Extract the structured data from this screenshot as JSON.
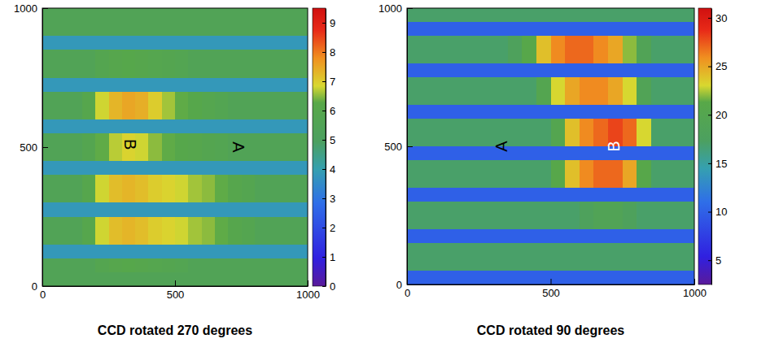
{
  "chart_data": [
    {
      "type": "heatmap",
      "title": "CCD rotated 270 degrees",
      "xlim": [
        0,
        1000
      ],
      "xticks": [
        0,
        500,
        1000
      ],
      "ylim": [
        0,
        1000
      ],
      "yticks": [
        0,
        500,
        1000
      ],
      "zlim": [
        0,
        9.5
      ],
      "zticks": [
        0,
        1,
        2,
        3,
        4,
        5,
        6,
        7,
        8,
        9
      ],
      "x": [
        25,
        75,
        125,
        175,
        225,
        275,
        325,
        375,
        425,
        475,
        525,
        575,
        625,
        675,
        725,
        775,
        825,
        875,
        925,
        975
      ],
      "y": [
        975,
        925,
        875,
        825,
        775,
        725,
        675,
        625,
        575,
        525,
        475,
        425,
        375,
        325,
        275,
        225,
        175,
        125,
        75,
        25
      ],
      "z": [
        [
          5.5,
          5.5,
          5.5,
          5.5,
          5.5,
          5.5,
          5.5,
          5.5,
          5.5,
          5.5,
          5.5,
          5.5,
          5.5,
          5.5,
          5.5,
          5.5,
          5.5,
          5.5,
          5.5,
          5.5
        ],
        [
          5.5,
          5.5,
          5.5,
          5.5,
          5.5,
          5.5,
          5.5,
          5.5,
          5.5,
          5.5,
          5.5,
          5.5,
          5.5,
          5.5,
          5.5,
          5.5,
          5.5,
          5.5,
          5.5,
          5.5
        ],
        [
          3.8,
          3.8,
          3.8,
          3.8,
          3.8,
          3.8,
          3.8,
          3.8,
          3.8,
          3.8,
          3.8,
          3.8,
          3.8,
          3.8,
          3.8,
          3.8,
          3.8,
          3.8,
          3.8,
          3.8
        ],
        [
          5.5,
          5.5,
          5.5,
          5.5,
          5.8,
          6.0,
          6.1,
          6.0,
          5.9,
          5.8,
          5.7,
          5.5,
          5.5,
          5.5,
          5.5,
          5.5,
          5.5,
          5.5,
          5.5,
          5.5
        ],
        [
          5.5,
          5.5,
          5.5,
          5.5,
          5.8,
          6.0,
          6.1,
          6.0,
          5.9,
          5.8,
          5.7,
          5.5,
          5.5,
          5.5,
          5.5,
          5.5,
          5.5,
          5.5,
          5.5,
          5.5
        ],
        [
          3.8,
          3.8,
          3.8,
          3.8,
          3.8,
          3.8,
          3.8,
          3.8,
          3.8,
          3.8,
          3.8,
          3.8,
          3.8,
          3.8,
          3.8,
          3.8,
          3.8,
          3.8,
          3.8,
          3.8
        ],
        [
          5.5,
          5.5,
          5.5,
          6.0,
          6.8,
          7.3,
          7.5,
          7.4,
          7.0,
          6.6,
          6.3,
          6.1,
          5.9,
          5.7,
          5.5,
          5.5,
          5.5,
          5.5,
          5.5,
          5.5
        ],
        [
          5.5,
          5.5,
          5.5,
          6.0,
          6.8,
          7.3,
          7.5,
          7.4,
          7.0,
          6.6,
          6.3,
          6.1,
          5.9,
          5.7,
          5.5,
          5.5,
          5.5,
          5.5,
          5.5,
          5.5
        ],
        [
          3.8,
          3.8,
          3.8,
          3.8,
          3.8,
          3.8,
          3.8,
          3.8,
          3.8,
          3.8,
          3.8,
          3.8,
          3.8,
          3.8,
          3.8,
          3.8,
          3.8,
          3.8,
          3.8,
          3.8
        ],
        [
          5.5,
          5.5,
          5.5,
          5.8,
          6.3,
          6.7,
          6.9,
          6.8,
          6.5,
          6.3,
          6.1,
          6.0,
          5.8,
          5.7,
          5.5,
          5.5,
          5.5,
          5.5,
          5.5,
          5.5
        ],
        [
          5.5,
          5.5,
          5.5,
          5.8,
          6.3,
          6.7,
          6.9,
          6.8,
          6.5,
          6.3,
          6.1,
          6.0,
          5.8,
          5.7,
          5.5,
          5.5,
          5.5,
          5.5,
          5.5,
          5.5
        ],
        [
          3.8,
          3.8,
          3.8,
          3.8,
          3.8,
          3.8,
          3.8,
          3.8,
          3.8,
          3.8,
          3.8,
          3.8,
          3.8,
          3.8,
          3.8,
          3.8,
          3.8,
          3.8,
          3.8,
          3.8
        ],
        [
          5.5,
          5.5,
          5.5,
          6.0,
          6.8,
          7.2,
          7.3,
          7.2,
          7.0,
          6.9,
          6.8,
          6.6,
          6.5,
          6.3,
          6.0,
          5.8,
          5.5,
          5.5,
          5.5,
          5.5
        ],
        [
          5.5,
          5.5,
          5.5,
          6.0,
          6.8,
          7.2,
          7.3,
          7.2,
          7.0,
          6.9,
          6.8,
          6.6,
          6.5,
          6.3,
          6.0,
          5.8,
          5.5,
          5.5,
          5.5,
          5.5
        ],
        [
          3.8,
          3.8,
          3.8,
          3.8,
          3.8,
          3.8,
          3.8,
          3.8,
          3.8,
          3.8,
          3.8,
          3.8,
          3.8,
          3.8,
          3.8,
          3.8,
          3.8,
          3.8,
          3.8,
          3.8
        ],
        [
          5.5,
          5.5,
          5.5,
          6.0,
          6.8,
          7.2,
          7.3,
          7.2,
          7.0,
          6.9,
          6.8,
          6.6,
          6.5,
          6.3,
          6.0,
          5.8,
          5.5,
          5.5,
          5.5,
          5.5
        ],
        [
          5.5,
          5.5,
          5.5,
          6.0,
          6.8,
          7.2,
          7.3,
          7.2,
          7.0,
          6.9,
          6.8,
          6.6,
          6.5,
          6.3,
          6.0,
          5.8,
          5.5,
          5.5,
          5.5,
          5.5
        ],
        [
          3.8,
          3.8,
          3.8,
          3.8,
          3.8,
          3.8,
          3.8,
          3.8,
          3.8,
          3.8,
          3.8,
          3.8,
          3.8,
          3.8,
          3.8,
          3.8,
          3.8,
          3.8,
          3.8,
          3.8
        ],
        [
          5.5,
          5.5,
          5.5,
          5.5,
          5.8,
          6.0,
          6.1,
          6.0,
          5.9,
          5.8,
          5.7,
          5.5,
          5.5,
          5.5,
          5.5,
          5.5,
          5.5,
          5.5,
          5.5,
          5.5
        ],
        [
          5.5,
          5.5,
          5.5,
          5.5,
          5.5,
          5.5,
          5.5,
          5.5,
          5.5,
          5.5,
          5.5,
          5.5,
          5.5,
          5.5,
          5.5,
          5.5,
          5.5,
          5.5,
          5.5,
          5.5
        ]
      ],
      "annotations": [
        {
          "text": "B",
          "x": 330,
          "y": 510,
          "color": "#000000"
        },
        {
          "text": "A",
          "x": 740,
          "y": 500,
          "color": "#000000"
        }
      ]
    },
    {
      "type": "heatmap",
      "title": "CCD rotated 90 degrees",
      "xlim": [
        0,
        1000
      ],
      "xticks": [
        0,
        500,
        1000
      ],
      "ylim": [
        0,
        1000
      ],
      "yticks": [
        0,
        500,
        1000
      ],
      "zlim": [
        2.5,
        31
      ],
      "zticks": [
        5,
        10,
        15,
        20,
        25,
        30
      ],
      "x": [
        25,
        75,
        125,
        175,
        225,
        275,
        325,
        375,
        425,
        475,
        525,
        575,
        625,
        675,
        725,
        775,
        825,
        875,
        925,
        975
      ],
      "y": [
        975,
        925,
        875,
        825,
        775,
        725,
        675,
        625,
        575,
        525,
        475,
        425,
        375,
        325,
        275,
        225,
        175,
        125,
        75,
        25
      ],
      "z": [
        [
          17,
          17,
          17,
          17,
          17,
          17,
          17,
          17,
          17,
          17,
          17,
          17,
          17,
          17,
          17,
          17,
          17,
          17,
          17,
          17
        ],
        [
          10,
          10,
          10,
          10,
          10,
          10,
          10,
          10,
          10,
          10,
          10,
          10,
          10,
          10,
          10,
          10,
          10,
          10,
          10,
          10
        ],
        [
          17,
          17,
          17,
          17,
          17,
          17,
          17,
          18,
          21,
          24,
          26,
          27,
          27,
          26,
          25,
          22,
          19,
          17,
          17,
          17
        ],
        [
          17,
          17,
          17,
          17,
          17,
          17,
          17,
          18,
          21,
          24,
          26,
          27,
          27,
          26,
          25,
          22,
          19,
          17,
          17,
          17
        ],
        [
          10,
          10,
          10,
          10,
          10,
          10,
          10,
          10,
          10,
          10,
          10,
          10,
          10,
          10,
          10,
          10,
          10,
          10,
          10,
          10
        ],
        [
          17,
          17,
          17,
          17,
          17,
          17,
          17,
          17,
          17,
          20,
          23,
          25,
          26,
          26,
          25,
          23,
          19,
          17,
          17,
          17
        ],
        [
          17,
          17,
          17,
          17,
          17,
          17,
          17,
          17,
          17,
          20,
          23,
          25,
          26,
          26,
          25,
          23,
          19,
          17,
          17,
          17
        ],
        [
          10,
          10,
          10,
          10,
          10,
          10,
          10,
          10,
          10,
          10,
          10,
          10,
          10,
          10,
          10,
          10,
          10,
          10,
          10,
          10
        ],
        [
          17,
          17,
          17,
          17,
          17,
          17,
          17,
          17,
          17,
          17,
          20,
          24,
          26,
          27,
          28,
          27,
          23,
          17,
          17,
          17
        ],
        [
          17,
          17,
          17,
          17,
          17,
          17,
          17,
          17,
          17,
          17,
          20,
          24,
          26,
          27,
          28,
          27,
          23,
          17,
          17,
          17
        ],
        [
          10,
          10,
          10,
          10,
          10,
          10,
          10,
          10,
          10,
          10,
          10,
          10,
          10,
          10,
          10,
          10,
          10,
          10,
          10,
          10
        ],
        [
          17,
          17,
          17,
          17,
          17,
          17,
          17,
          17,
          17,
          17,
          21,
          24,
          26,
          27,
          27,
          25,
          21,
          17,
          17,
          17
        ],
        [
          17,
          17,
          17,
          17,
          17,
          17,
          17,
          17,
          17,
          17,
          21,
          24,
          26,
          27,
          27,
          25,
          21,
          17,
          17,
          17
        ],
        [
          10,
          10,
          10,
          10,
          10,
          10,
          10,
          10,
          10,
          10,
          10,
          10,
          10,
          10,
          10,
          10,
          10,
          10,
          10,
          10
        ],
        [
          17,
          17,
          17,
          17,
          17,
          17,
          17,
          17,
          17,
          17,
          17,
          17,
          18,
          19,
          19,
          18,
          17,
          17,
          17,
          17
        ],
        [
          17,
          17,
          17,
          17,
          17,
          17,
          17,
          17,
          17,
          17,
          17,
          17,
          18,
          19,
          19,
          18,
          17,
          17,
          17,
          17
        ],
        [
          10,
          10,
          10,
          10,
          10,
          10,
          10,
          10,
          10,
          10,
          10,
          10,
          10,
          10,
          10,
          10,
          10,
          10,
          10,
          10
        ],
        [
          17,
          17,
          17,
          17,
          17,
          17,
          17,
          17,
          17,
          17,
          17,
          17,
          17,
          17,
          17,
          17,
          17,
          17,
          17,
          17
        ],
        [
          17,
          17,
          17,
          17,
          17,
          17,
          17,
          17,
          17,
          17,
          17,
          17,
          17,
          17,
          17,
          17,
          17,
          17,
          17,
          17
        ],
        [
          10,
          10,
          10,
          10,
          10,
          10,
          10,
          10,
          10,
          10,
          10,
          10,
          10,
          10,
          10,
          10,
          10,
          10,
          10,
          10
        ]
      ],
      "annotations": [
        {
          "text": "A",
          "x": 330,
          "y": 500,
          "color": "#000000"
        },
        {
          "text": "B",
          "x": 720,
          "y": 500,
          "color": "#ffffff"
        }
      ]
    }
  ]
}
